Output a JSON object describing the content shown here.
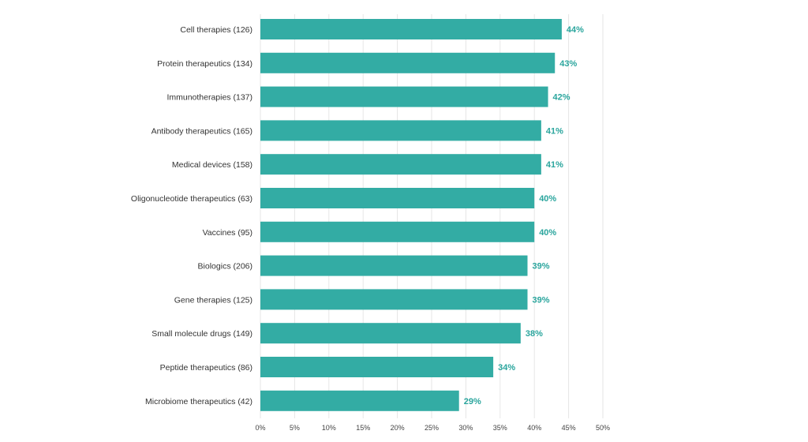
{
  "chart_data": {
    "type": "bar",
    "orientation": "horizontal",
    "categories": [
      "Cell therapies (126)",
      "Protein therapeutics (134)",
      "Immunotherapies (137)",
      "Antibody therapeutics (165)",
      "Medical devices (158)",
      "Oligonucleotide therapeutics (63)",
      "Vaccines (95)",
      "Biologics (206)",
      "Gene therapies (125)",
      "Small molecule drugs (149)",
      "Peptide therapeutics (86)",
      "Microbiome therapeutics (42)"
    ],
    "values": [
      44,
      43,
      42,
      41,
      41,
      40,
      40,
      39,
      39,
      38,
      34,
      29
    ],
    "value_labels": [
      "44%",
      "43%",
      "42%",
      "41%",
      "41%",
      "40%",
      "40%",
      "39%",
      "39%",
      "38%",
      "34%",
      "29%"
    ],
    "xlim": [
      0,
      50
    ],
    "xticks": [
      0,
      5,
      10,
      15,
      20,
      25,
      30,
      35,
      40,
      45,
      50
    ],
    "xtick_labels": [
      "0%",
      "5%",
      "10%",
      "15%",
      "20%",
      "25%",
      "30%",
      "35%",
      "40%",
      "45%",
      "50%"
    ],
    "grid": true,
    "title": "",
    "xlabel": "",
    "ylabel": "",
    "colors": {
      "bar": "#33aca4",
      "value_label": "#2aa59d"
    }
  }
}
